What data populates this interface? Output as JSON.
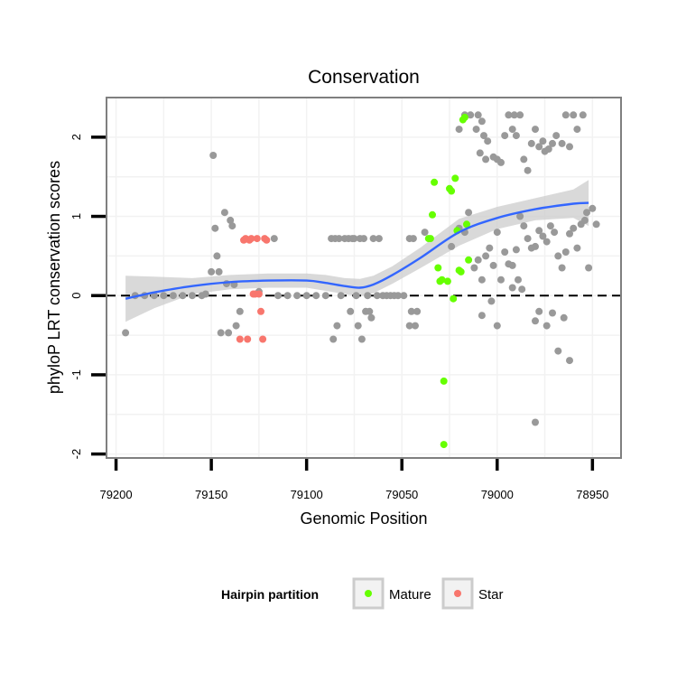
{
  "chart_data": {
    "type": "scatter",
    "title": "Conservation",
    "xlabel": "Genomic Position",
    "ylabel": "phyloP LRT conservation scores",
    "x_reversed": true,
    "xlim": [
      79205,
      78935
    ],
    "ylim": [
      -2.05,
      2.5
    ],
    "x_ticks": [
      79200,
      79150,
      79100,
      79050,
      79000,
      78950
    ],
    "x_tick_labels": [
      "79200",
      "79150",
      "79100",
      "79050",
      "79000",
      "78950"
    ],
    "y_ticks": [
      -2,
      -1,
      0,
      1,
      2
    ],
    "y_tick_labels": [
      "-2",
      "-1",
      "0",
      "1",
      "2"
    ],
    "reference_line": {
      "y": 0,
      "style": "dashed"
    },
    "legend": {
      "title": "Hairpin partition",
      "placement": "bottom",
      "entries": [
        {
          "label": "Mature",
          "color": "#66ff00"
        },
        {
          "label": "Star",
          "color": "#f8766d"
        }
      ]
    },
    "colors": {
      "other": "#999999",
      "Mature": "#66ff00",
      "Star": "#f8766d",
      "smooth": "#3366ff",
      "ribbon": "#cccccc"
    },
    "series": [
      {
        "name": "Other",
        "color": "#999999",
        "points": [
          [
            79195,
            -0.47
          ],
          [
            79190,
            0
          ],
          [
            79185,
            0
          ],
          [
            79180,
            0
          ],
          [
            79175,
            0
          ],
          [
            79170,
            0
          ],
          [
            79165,
            0
          ],
          [
            79160,
            0
          ],
          [
            79155,
            0
          ],
          [
            79153,
            0.02
          ],
          [
            79150,
            0.3
          ],
          [
            79149,
            1.77
          ],
          [
            79148,
            0.85
          ],
          [
            79147,
            0.5
          ],
          [
            79146,
            0.3
          ],
          [
            79145,
            -0.47
          ],
          [
            79143,
            1.05
          ],
          [
            79142,
            0.15
          ],
          [
            79141,
            -0.47
          ],
          [
            79140,
            0.95
          ],
          [
            79139,
            0.88
          ],
          [
            79138,
            0.14
          ],
          [
            79137,
            -0.38
          ],
          [
            79135,
            -0.2
          ],
          [
            79125,
            0.05
          ],
          [
            79117,
            0.72
          ],
          [
            79115,
            0
          ],
          [
            79110,
            0
          ],
          [
            79105,
            0
          ],
          [
            79100,
            0
          ],
          [
            79095,
            0
          ],
          [
            79090,
            0
          ],
          [
            79087,
            0.72
          ],
          [
            79086,
            -0.55
          ],
          [
            79085,
            0.72
          ],
          [
            79084,
            -0.38
          ],
          [
            79083,
            0.72
          ],
          [
            79082,
            0
          ],
          [
            79080,
            0.72
          ],
          [
            79078,
            0.72
          ],
          [
            79077,
            -0.2
          ],
          [
            79076,
            0.72
          ],
          [
            79075,
            0.72
          ],
          [
            79074,
            0
          ],
          [
            79073,
            -0.38
          ],
          [
            79072,
            0.72
          ],
          [
            79071,
            -0.55
          ],
          [
            79070,
            0.72
          ],
          [
            79069,
            -0.2
          ],
          [
            79068,
            0
          ],
          [
            79067,
            -0.2
          ],
          [
            79066,
            -0.28
          ],
          [
            79065,
            0.72
          ],
          [
            79063,
            0
          ],
          [
            79062,
            0.72
          ],
          [
            79060,
            0
          ],
          [
            79058,
            0
          ],
          [
            79056,
            0
          ],
          [
            79054,
            0
          ],
          [
            79052,
            0
          ],
          [
            79049,
            0
          ],
          [
            79046,
            0.72
          ],
          [
            79044,
            0.72
          ],
          [
            79046,
            -0.38
          ],
          [
            79045,
            -0.2
          ],
          [
            79043,
            -0.38
          ],
          [
            79042,
            -0.2
          ],
          [
            79038,
            0.8
          ],
          [
            79020,
            2.1
          ],
          [
            79017,
            2.28
          ],
          [
            79014,
            2.28
          ],
          [
            79011,
            2.1
          ],
          [
            79010,
            2.28
          ],
          [
            79009,
            1.8
          ],
          [
            79008,
            2.2
          ],
          [
            79007,
            2.02
          ],
          [
            79006,
            1.72
          ],
          [
            79005,
            1.95
          ],
          [
            79002,
            1.75
          ],
          [
            79000,
            1.72
          ],
          [
            78998,
            1.68
          ],
          [
            78996,
            2.02
          ],
          [
            78994,
            2.28
          ],
          [
            78992,
            2.1
          ],
          [
            78991,
            2.28
          ],
          [
            78990,
            2.02
          ],
          [
            78988,
            2.28
          ],
          [
            78986,
            1.72
          ],
          [
            78984,
            1.58
          ],
          [
            78982,
            1.92
          ],
          [
            78980,
            2.1
          ],
          [
            78978,
            1.88
          ],
          [
            78976,
            1.95
          ],
          [
            78975,
            1.82
          ],
          [
            78973,
            1.85
          ],
          [
            78971,
            1.92
          ],
          [
            78969,
            2.02
          ],
          [
            78966,
            1.92
          ],
          [
            78964,
            2.28
          ],
          [
            78962,
            1.88
          ],
          [
            78960,
            2.28
          ],
          [
            78958,
            2.1
          ],
          [
            78955,
            2.28
          ],
          [
            79024,
            0.62
          ],
          [
            79020,
            0.85
          ],
          [
            79017,
            0.8
          ],
          [
            79015,
            1.05
          ],
          [
            79012,
            0.35
          ],
          [
            79010,
            0.45
          ],
          [
            79008,
            0.2
          ],
          [
            79006,
            0.5
          ],
          [
            79004,
            0.6
          ],
          [
            79002,
            0.38
          ],
          [
            79000,
            0.8
          ],
          [
            78998,
            0.2
          ],
          [
            78996,
            0.55
          ],
          [
            78994,
            0.4
          ],
          [
            78992,
            0.38
          ],
          [
            78990,
            0.58
          ],
          [
            78989,
            0.2
          ],
          [
            78988,
            1.0
          ],
          [
            78986,
            0.88
          ],
          [
            78984,
            0.72
          ],
          [
            78982,
            0.6
          ],
          [
            78980,
            0.62
          ],
          [
            78978,
            0.82
          ],
          [
            78976,
            0.75
          ],
          [
            78974,
            0.68
          ],
          [
            78972,
            0.88
          ],
          [
            78970,
            0.8
          ],
          [
            78968,
            0.5
          ],
          [
            78966,
            0.35
          ],
          [
            78964,
            0.55
          ],
          [
            78962,
            0.78
          ],
          [
            78960,
            0.85
          ],
          [
            78958,
            0.6
          ],
          [
            78956,
            0.9
          ],
          [
            78954,
            0.95
          ],
          [
            78953,
            1.05
          ],
          [
            78952,
            0.35
          ],
          [
            78950,
            1.1
          ],
          [
            78948,
            0.9
          ],
          [
            79008,
            -0.25
          ],
          [
            79003,
            -0.07
          ],
          [
            79000,
            -0.38
          ],
          [
            78992,
            0.1
          ],
          [
            78987,
            0.08
          ],
          [
            78980,
            -0.32
          ],
          [
            78978,
            -0.2
          ],
          [
            78974,
            -0.38
          ],
          [
            78971,
            -0.22
          ],
          [
            78968,
            -0.7
          ],
          [
            78965,
            -0.28
          ],
          [
            78962,
            -0.82
          ],
          [
            78980,
            -1.6
          ]
        ]
      },
      {
        "name": "Mature",
        "color": "#66ff00",
        "points": [
          [
            79035,
            0.72
          ],
          [
            79034,
            1.02
          ],
          [
            79033,
            1.43
          ],
          [
            79031,
            0.35
          ],
          [
            79030,
            0.18
          ],
          [
            79029,
            0.2
          ],
          [
            79028,
            -1.08
          ],
          [
            79028,
            -1.88
          ],
          [
            79026,
            0.18
          ],
          [
            79025,
            1.35
          ],
          [
            79024,
            1.32
          ],
          [
            79023,
            -0.04
          ],
          [
            79022,
            1.48
          ],
          [
            79021,
            0.82
          ],
          [
            79020,
            0.32
          ],
          [
            79019,
            0.3
          ],
          [
            79018,
            2.22
          ],
          [
            79017,
            2.25
          ],
          [
            79016,
            0.9
          ],
          [
            79015,
            0.45
          ],
          [
            79036,
            0.72
          ]
        ]
      },
      {
        "name": "Star",
        "color": "#f8766d",
        "points": [
          [
            79135,
            -0.55
          ],
          [
            79133,
            0.7
          ],
          [
            79132,
            0.72
          ],
          [
            79131,
            -0.55
          ],
          [
            79130,
            0.7
          ],
          [
            79129,
            0.72
          ],
          [
            79128,
            0.02
          ],
          [
            79127,
            0.02
          ],
          [
            79126,
            0.72
          ],
          [
            79125,
            0.02
          ],
          [
            79124,
            -0.2
          ],
          [
            79123,
            -0.55
          ],
          [
            79122,
            0.72
          ],
          [
            79121,
            0.7
          ]
        ]
      }
    ],
    "smooth": {
      "x": [
        79195,
        79180,
        79160,
        79140,
        79120,
        79100,
        79090,
        79080,
        79072,
        79065,
        79055,
        79040,
        79020,
        79000,
        78980,
        78960,
        78952
      ],
      "y": [
        -0.04,
        0.04,
        0.12,
        0.17,
        0.19,
        0.19,
        0.16,
        0.12,
        0.1,
        0.14,
        0.26,
        0.48,
        0.8,
        0.98,
        1.09,
        1.16,
        1.17
      ],
      "lower": [
        -0.33,
        -0.16,
        0.02,
        0.08,
        0.1,
        0.1,
        0.06,
        0.02,
        -0.01,
        0.03,
        0.15,
        0.35,
        0.63,
        0.84,
        0.95,
        0.98,
        0.88
      ],
      "upper": [
        0.25,
        0.24,
        0.22,
        0.26,
        0.28,
        0.28,
        0.26,
        0.22,
        0.21,
        0.25,
        0.37,
        0.61,
        0.97,
        1.12,
        1.23,
        1.34,
        1.46
      ]
    }
  }
}
